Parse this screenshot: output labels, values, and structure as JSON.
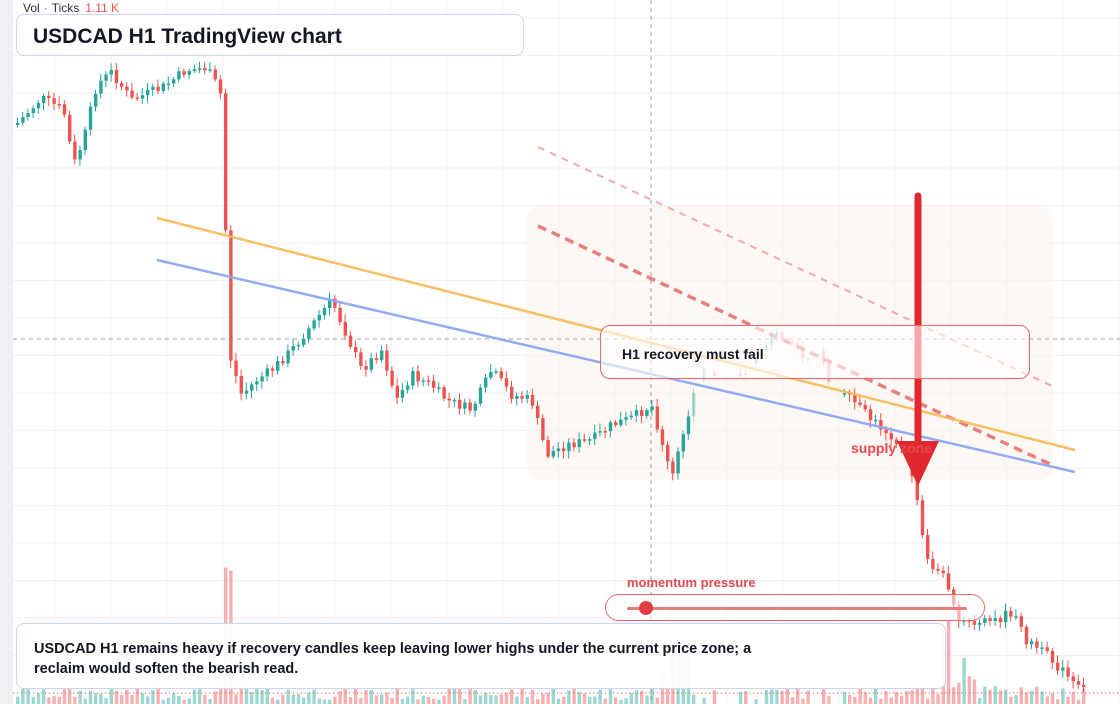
{
  "header": {
    "volume_label": "Vol",
    "ticks_label": "Ticks",
    "volume_value": "1.11 K"
  },
  "title": "USDCAD H1 TradingView chart",
  "callout": {
    "text": "H1 recovery must fail",
    "zone_label": "supply zone"
  },
  "momentum": {
    "label": "momentum pressure",
    "level": 0.05
  },
  "summary": "USDCAD H1 remains heavy if recovery candles keep leaving lower highs under the current price zone; a reclaim would soften the bearish read.",
  "colors": {
    "bull": "#26a69a",
    "bear": "#ef5350",
    "trend_orange": "#f7b955",
    "trend_blue": "#8ca8f0",
    "arrow": "#e0282e",
    "channel": "#e36a6a"
  }
}
